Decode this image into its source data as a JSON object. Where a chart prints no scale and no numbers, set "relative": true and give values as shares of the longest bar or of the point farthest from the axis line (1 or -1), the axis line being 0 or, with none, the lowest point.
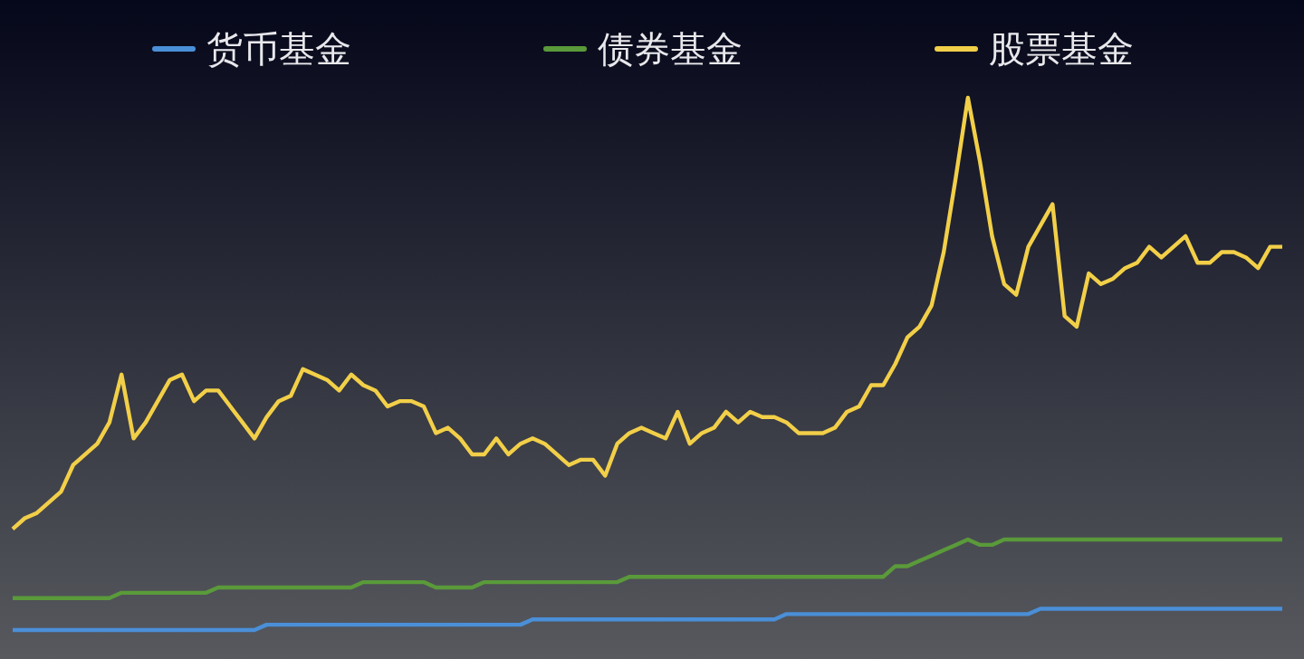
{
  "chart_data": {
    "type": "line",
    "relative": true,
    "legend": "top",
    "categories": [
      null,
      null,
      null,
      null,
      null,
      null,
      null,
      null,
      null,
      null,
      null,
      null,
      null,
      null,
      null,
      null,
      null,
      null,
      null,
      null,
      null,
      null,
      null,
      null,
      null,
      null,
      null,
      null,
      null,
      null,
      null,
      null,
      null,
      null,
      null,
      null,
      null,
      null,
      null,
      null,
      null,
      null,
      null,
      null,
      null,
      null,
      null,
      null,
      null,
      null,
      null,
      null,
      null,
      null,
      null,
      null,
      null,
      null,
      null,
      null,
      null,
      null,
      null,
      null,
      null,
      null,
      null,
      null,
      null,
      null,
      null,
      null,
      null,
      null,
      null,
      null,
      null,
      null,
      null,
      null,
      null,
      null,
      null,
      null,
      null,
      null,
      null,
      null,
      null,
      null,
      null,
      null,
      null,
      null,
      null,
      null,
      null,
      null,
      null,
      null,
      null,
      null,
      null,
      null,
      null,
      null
    ],
    "series": [
      {
        "name": "货币基金",
        "color": "#4a8fd8",
        "values": [
          0,
          0,
          0,
          0,
          0,
          0,
          0,
          0,
          0,
          0,
          0,
          0,
          0,
          0,
          0,
          0,
          0,
          0,
          0,
          0,
          0,
          0.01,
          0.01,
          0.01,
          0.01,
          0.01,
          0.01,
          0.01,
          0.01,
          0.01,
          0.01,
          0.01,
          0.01,
          0.01,
          0.01,
          0.01,
          0.01,
          0.01,
          0.01,
          0.01,
          0.01,
          0.01,
          0.01,
          0.02,
          0.02,
          0.02,
          0.02,
          0.02,
          0.02,
          0.02,
          0.02,
          0.02,
          0.02,
          0.02,
          0.02,
          0.02,
          0.02,
          0.02,
          0.02,
          0.02,
          0.02,
          0.02,
          0.02,
          0.02,
          0.03,
          0.03,
          0.03,
          0.03,
          0.03,
          0.03,
          0.03,
          0.03,
          0.03,
          0.03,
          0.03,
          0.03,
          0.03,
          0.03,
          0.03,
          0.03,
          0.03,
          0.03,
          0.03,
          0.03,
          0.03,
          0.04,
          0.04,
          0.04,
          0.04,
          0.04,
          0.04,
          0.04,
          0.04,
          0.04,
          0.04,
          0.04,
          0.04,
          0.04,
          0.04,
          0.04,
          0.04,
          0.04,
          0.04,
          0.04,
          0.04,
          0.04
        ]
      },
      {
        "name": "债券基金",
        "color": "#5a9a3a",
        "values": [
          0.06,
          0.06,
          0.06,
          0.06,
          0.06,
          0.06,
          0.06,
          0.06,
          0.06,
          0.07,
          0.07,
          0.07,
          0.07,
          0.07,
          0.07,
          0.07,
          0.07,
          0.08,
          0.08,
          0.08,
          0.08,
          0.08,
          0.08,
          0.08,
          0.08,
          0.08,
          0.08,
          0.08,
          0.08,
          0.09,
          0.09,
          0.09,
          0.09,
          0.09,
          0.09,
          0.08,
          0.08,
          0.08,
          0.08,
          0.09,
          0.09,
          0.09,
          0.09,
          0.09,
          0.09,
          0.09,
          0.09,
          0.09,
          0.09,
          0.09,
          0.09,
          0.1,
          0.1,
          0.1,
          0.1,
          0.1,
          0.1,
          0.1,
          0.1,
          0.1,
          0.1,
          0.1,
          0.1,
          0.1,
          0.1,
          0.1,
          0.1,
          0.1,
          0.1,
          0.1,
          0.1,
          0.1,
          0.1,
          0.12,
          0.12,
          0.13,
          0.14,
          0.15,
          0.16,
          0.17,
          0.16,
          0.16,
          0.17,
          0.17,
          0.17,
          0.17,
          0.17,
          0.17,
          0.17,
          0.17,
          0.17,
          0.17,
          0.17,
          0.17,
          0.17,
          0.17,
          0.17,
          0.17,
          0.17,
          0.17,
          0.17,
          0.17,
          0.17,
          0.17,
          0.17,
          0.17
        ]
      },
      {
        "name": "股票基金",
        "color": "#f2cf48",
        "values": [
          0.19,
          0.21,
          0.22,
          0.24,
          0.26,
          0.31,
          0.33,
          0.35,
          0.39,
          0.48,
          0.36,
          0.39,
          0.43,
          0.47,
          0.48,
          0.43,
          0.45,
          0.45,
          0.42,
          0.39,
          0.36,
          0.4,
          0.43,
          0.44,
          0.49,
          0.48,
          0.47,
          0.45,
          0.48,
          0.46,
          0.45,
          0.42,
          0.43,
          0.43,
          0.42,
          0.37,
          0.38,
          0.36,
          0.33,
          0.33,
          0.36,
          0.33,
          0.35,
          0.36,
          0.35,
          0.33,
          0.31,
          0.32,
          0.32,
          0.29,
          0.35,
          0.37,
          0.38,
          0.37,
          0.36,
          0.41,
          0.35,
          0.37,
          0.38,
          0.41,
          0.39,
          0.41,
          0.4,
          0.4,
          0.39,
          0.37,
          0.37,
          0.37,
          0.38,
          0.41,
          0.42,
          0.46,
          0.46,
          0.5,
          0.55,
          0.57,
          0.61,
          0.71,
          0.85,
          1,
          0.88,
          0.74,
          0.65,
          0.63,
          0.72,
          0.76,
          0.8,
          0.59,
          0.57,
          0.67,
          0.65,
          0.66,
          0.68,
          0.69,
          0.72,
          0.7,
          0.72,
          0.74,
          0.69,
          0.69,
          0.71,
          0.71,
          0.7,
          0.68,
          0.72,
          0.72
        ]
      }
    ]
  }
}
